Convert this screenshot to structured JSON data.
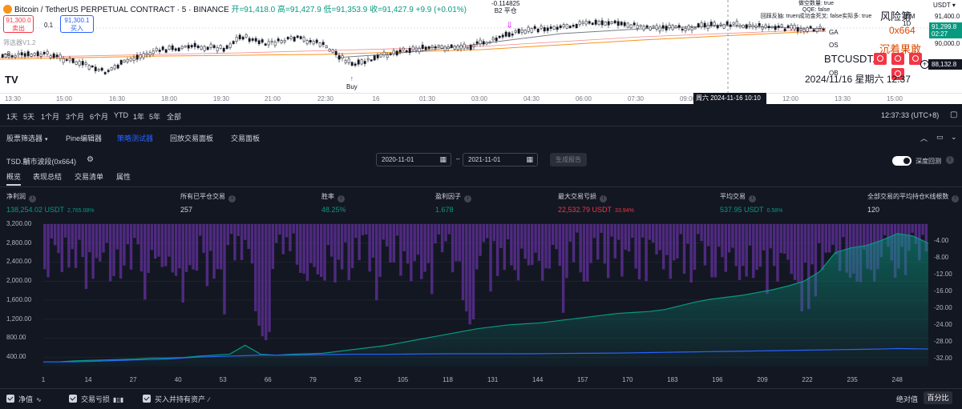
{
  "top_chart": {
    "symbol": "Bitcoin / TetherUS PERPETUAL CONTRACT · 5 · BINANCE",
    "ohlc": "开=91,418.0 高=91,427.9 低=91,353.9 收=91,427.9 +9.9 (+0.01%)",
    "sell_price": "91,300.0",
    "sell_label": "卖出",
    "spread": "0.1",
    "buy_price": "91,300.1",
    "buy_label": "买入",
    "screener_label": "筛选器V1.2",
    "minus8": "−8",
    "logo_text": "TV",
    "b2_value": "-0.114825",
    "b2_label": "B2 平仓",
    "buy_marker": "Buy",
    "info_lines": [
      "做空数量: true",
      "QQE: false",
      "回踩反抽: truen成功金死叉: false实际多: true"
    ],
    "risk_label": "风险第",
    "risk_sub": "15M 1D",
    "x664": "0x664",
    "chen": "沉着果敢",
    "btc_p": "BTCUSDT.P",
    "datetime": "2024/11/16 星期六 12:37",
    "indicators": [
      {
        "label": "GA",
        "top": 36
      },
      {
        "label": "OS",
        "top": 52
      },
      {
        "label": "OB",
        "top": 87
      }
    ],
    "usdt": "USDT",
    "price_tag_green": "91,299.8",
    "price_tag_green_time": "02:27",
    "price_tag_dark": "88,132.8",
    "axis_prices": [
      {
        "label": "91,400.0",
        "top": 16
      },
      {
        "label": "90,000.0",
        "top": 50
      }
    ],
    "time_labels": [
      "13:30",
      "15:00",
      "16:30",
      "18:00",
      "19:30",
      "21:00",
      "22:30",
      "16",
      "01:30",
      "03:00",
      "04:30",
      "06:00",
      "07:30",
      "09:00",
      "12:00",
      "13:30",
      "15:00"
    ],
    "time_tag": "周六 2024-11-16 10:10"
  },
  "range_bar": {
    "items": [
      "1天",
      "5天",
      "1个月",
      "3个月",
      "6个月",
      "YTD",
      "1年",
      "5年",
      "全部"
    ],
    "clock": "12:37:33 (UTC+8)"
  },
  "panel_tabs": {
    "tabs": [
      "股票筛选器",
      "Pine编辑器",
      "策略测试器",
      "回放交易面板",
      "交易面板"
    ],
    "active_index": 2
  },
  "strategy": {
    "name": "TSD.黼市波段(0x664)",
    "date_from": "2020-11-01",
    "date_to": "2021-11-01",
    "generate_label": "生成报告",
    "deep_backtest_label": "深度回测"
  },
  "sub_tabs": [
    "概览",
    "表现总结",
    "交易清单",
    "属性"
  ],
  "stats": [
    {
      "label": "净利润",
      "value": "138,254.02 USDT",
      "pct": "2,765.08%",
      "color": "green"
    },
    {
      "label": "所有已平仓交易",
      "value": "257",
      "pct": "",
      "color": "white"
    },
    {
      "label": "胜率",
      "value": "48.25%",
      "pct": "",
      "color": "green"
    },
    {
      "label": "盈利因子",
      "value": "1.678",
      "pct": "",
      "color": "green"
    },
    {
      "label": "最大交易亏损",
      "value": "22,532.79 USDT",
      "pct": "33.94%",
      "color": "red"
    },
    {
      "label": "平均交易",
      "value": "537.95 USDT",
      "pct": "0.58%",
      "color": "green"
    },
    {
      "label": "全部交易的平均持仓K线根数",
      "value": "120",
      "pct": "",
      "color": "white"
    }
  ],
  "chart_data": {
    "type": "area",
    "x_ticks": [
      1,
      14,
      27,
      40,
      53,
      66,
      79,
      92,
      105,
      118,
      131,
      144,
      157,
      170,
      183,
      196,
      209,
      222,
      235,
      248
    ],
    "left_axis": {
      "ticks": [
        "3,200.00",
        "2,800.00",
        "2,400.00",
        "2,000.00",
        "1,600.00",
        "1,200.00",
        "800.00",
        "400.00"
      ],
      "range": [
        200,
        3200
      ]
    },
    "right_axis": {
      "ticks": [
        "-4.00",
        "-8.00",
        "-12.00",
        "-16.00",
        "-20.00",
        "-24.00",
        "-28.00",
        "-32.00"
      ],
      "range": [
        -34,
        0
      ]
    },
    "series": [
      {
        "name": "净值",
        "color": "#089981",
        "values": [
          300,
          300,
          320,
          330,
          340,
          350,
          360,
          380,
          380,
          390,
          420,
          440,
          460,
          650,
          460,
          440,
          460,
          470,
          480,
          520,
          560,
          600,
          640,
          700,
          760,
          820,
          880,
          940,
          1000,
          1040,
          1080,
          1100,
          1120,
          1160,
          1200,
          1240,
          1280,
          1320,
          1340,
          1360,
          1400,
          1480,
          1560,
          1620,
          1660,
          1700,
          1760,
          1820,
          1900,
          2000,
          2200,
          2600,
          2700,
          2750,
          2860,
          3000,
          2950,
          2800
        ]
      },
      {
        "name": "买入并持有资产",
        "color": "#2962ff",
        "values": [
          300,
          300,
          300,
          310,
          320,
          330,
          340,
          350,
          360,
          380,
          400,
          410,
          420,
          430,
          440,
          440,
          440,
          445,
          450,
          455,
          460,
          460,
          460,
          462,
          465,
          468,
          470,
          470,
          470,
          470,
          470,
          470,
          472,
          475,
          478,
          480,
          482,
          485,
          490,
          495,
          500,
          505,
          510,
          515,
          520,
          525,
          530,
          535,
          540,
          545,
          550,
          555,
          560,
          565,
          570,
          580,
          575,
          570
        ]
      }
    ],
    "drawdown_bars": {
      "name": "交易亏损",
      "color": "#5b2e91"
    }
  },
  "legend": {
    "items": [
      "净值",
      "交易亏损",
      "买入并持有资产"
    ],
    "absolute": "绝对值",
    "percent": "百分比"
  }
}
